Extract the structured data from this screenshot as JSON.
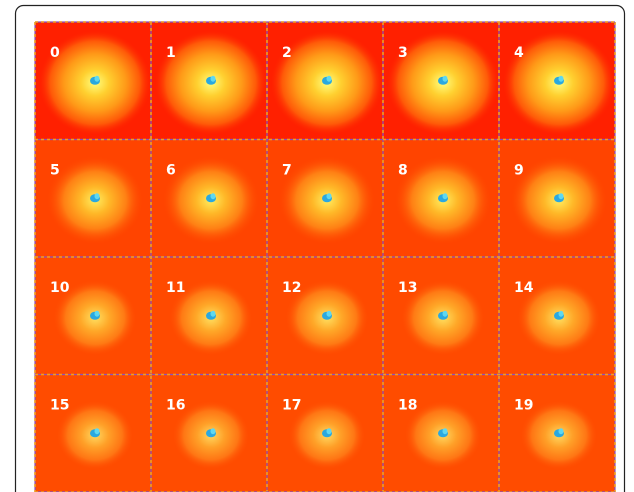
{
  "panels": [
    {
      "label": "0"
    },
    {
      "label": "1"
    },
    {
      "label": "2"
    },
    {
      "label": "3"
    },
    {
      "label": "4"
    },
    {
      "label": "5"
    },
    {
      "label": "6"
    },
    {
      "label": "7"
    },
    {
      "label": "8"
    },
    {
      "label": "9"
    },
    {
      "label": "10"
    },
    {
      "label": "11"
    },
    {
      "label": "12"
    },
    {
      "label": "13"
    },
    {
      "label": "14"
    },
    {
      "label": "15"
    },
    {
      "label": "16"
    },
    {
      "label": "17"
    },
    {
      "label": "18"
    },
    {
      "label": "19"
    }
  ]
}
